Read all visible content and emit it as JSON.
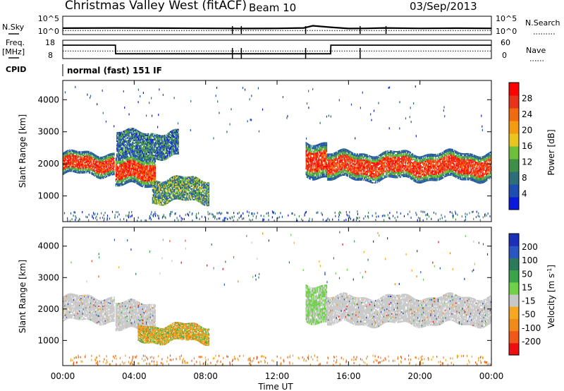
{
  "header": {
    "station": "Christmas Valley West (fitACF)",
    "beam": "Beam 10",
    "date": "03/Sep/2013"
  },
  "top_panels": {
    "nsky_label": "N.Sky",
    "nsky_ticks": [
      "10^5",
      "10^0"
    ],
    "nsearch_label": "N.Search",
    "nsearch_ticks": [
      "10^5",
      "10^0"
    ],
    "freq_label": "Freq.",
    "freq_unit": "[MHz]",
    "freq_ticks": [
      "18",
      "8"
    ],
    "nave_label": "Nave",
    "nave_ticks": [
      "60",
      "0"
    ],
    "cpid_label": "CPID",
    "cpid_value": "normal (fast) 151 IF"
  },
  "colors": {
    "power_scale": [
      "#0a1adc",
      "#1e4fb0",
      "#2d6e7a",
      "#3f8f4a",
      "#6fbf3a",
      "#e9c51d",
      "#f59b10",
      "#f06a10",
      "#e8331a",
      "#ff0000"
    ],
    "velocity_scale": [
      "#1b2fb8",
      "#2a56c2",
      "#2d7a5a",
      "#3aa44b",
      "#6fd04a",
      "#c8c8c8",
      "#f6a823",
      "#f08a18",
      "#f0581a",
      "#ee1010"
    ]
  },
  "chart_data": [
    {
      "type": "line",
      "panel": "N.Sky / N.Search",
      "ylabel": "N.Sky",
      "y2label": "N.Search",
      "yticks": [
        "10^5",
        "10^0"
      ],
      "y2ticks": [
        "10^5",
        "10^0"
      ],
      "series": [
        {
          "name": "N.Sky",
          "x": [
            0,
            3,
            6,
            9,
            10,
            12,
            13.5,
            14,
            15,
            16,
            17,
            18,
            20,
            22,
            24
          ],
          "y": [
            35,
            36,
            35,
            34,
            33,
            34,
            36,
            48,
            40,
            33,
            34,
            36,
            34,
            35,
            34
          ]
        },
        {
          "name": "N.Search",
          "x": [
            0,
            24
          ],
          "y": [
            22,
            22
          ]
        }
      ]
    },
    {
      "type": "line",
      "panel": "Freq. / Nave",
      "ylabel": "Freq. [MHz]",
      "y2label": "Nave",
      "yticks": [
        "18",
        "8"
      ],
      "y2ticks": [
        "60",
        "0"
      ],
      "series": [
        {
          "name": "Freq.",
          "x": [
            0,
            2.95,
            2.96,
            15.0,
            15.01,
            24
          ],
          "y": [
            15.3,
            15.3,
            10.6,
            10.6,
            15.3,
            15.3
          ]
        },
        {
          "name": "Nave",
          "x": [
            0,
            24
          ],
          "y": [
            25,
            25
          ]
        }
      ]
    },
    {
      "type": "heatmap",
      "panel": "Power",
      "ylabel": "Slant Range [km]",
      "xlabel": "",
      "colorbar_label": "Power [dB]",
      "colorbar_ticks": [
        "4",
        "8",
        "12",
        "16",
        "20",
        "24",
        "28"
      ],
      "xlim": [
        0,
        24
      ],
      "ylim": [
        200,
        4600
      ],
      "yticks": [
        "1000",
        "2000",
        "3000",
        "4000"
      ],
      "bands": [
        {
          "t0": 0.0,
          "t1": 2.9,
          "r_lo": 1650,
          "r_hi": 2350,
          "level": "strong"
        },
        {
          "t0": 2.95,
          "t1": 5.2,
          "r_lo": 1300,
          "r_hi": 2200,
          "level": "strong"
        },
        {
          "t0": 5.0,
          "t1": 8.2,
          "r_lo": 800,
          "r_hi": 1550,
          "level": "weak"
        },
        {
          "t0": 3.0,
          "t1": 6.5,
          "r_lo": 2200,
          "r_hi": 3000,
          "level": "medium"
        },
        {
          "t0": 13.6,
          "t1": 14.8,
          "r_lo": 1600,
          "r_hi": 2700,
          "level": "strong"
        },
        {
          "t0": 14.8,
          "t1": 24.0,
          "r_lo": 1500,
          "r_hi": 2350,
          "level": "strong"
        }
      ]
    },
    {
      "type": "heatmap",
      "panel": "Velocity",
      "ylabel": "Slant Range [km]",
      "xlabel": "Time UT",
      "colorbar_label": "Velocity [m s^-1]",
      "colorbar_ticks": [
        "200",
        "100",
        "50",
        "15",
        "-15",
        "-50",
        "-100",
        "-200"
      ],
      "xlim": [
        0,
        24
      ],
      "ylim": [
        200,
        4600
      ],
      "yticks": [
        "1000",
        "2000",
        "3000",
        "4000"
      ],
      "xticks": [
        "00:00",
        "04:00",
        "08:00",
        "12:00",
        "16:00",
        "20:00",
        "00:00"
      ],
      "bands": [
        {
          "t0": 0.0,
          "t1": 2.9,
          "r_lo": 1600,
          "r_hi": 2400,
          "level": "ground"
        },
        {
          "t0": 2.95,
          "t1": 5.2,
          "r_lo": 1300,
          "r_hi": 2200,
          "level": "ground"
        },
        {
          "t0": 4.2,
          "t1": 8.2,
          "r_lo": 950,
          "r_hi": 1500,
          "level": "away"
        },
        {
          "t0": 13.6,
          "t1": 14.8,
          "r_lo": 1600,
          "r_hi": 2800,
          "level": "toward"
        },
        {
          "t0": 14.8,
          "t1": 24.0,
          "r_lo": 1500,
          "r_hi": 2400,
          "level": "ground"
        }
      ]
    }
  ]
}
